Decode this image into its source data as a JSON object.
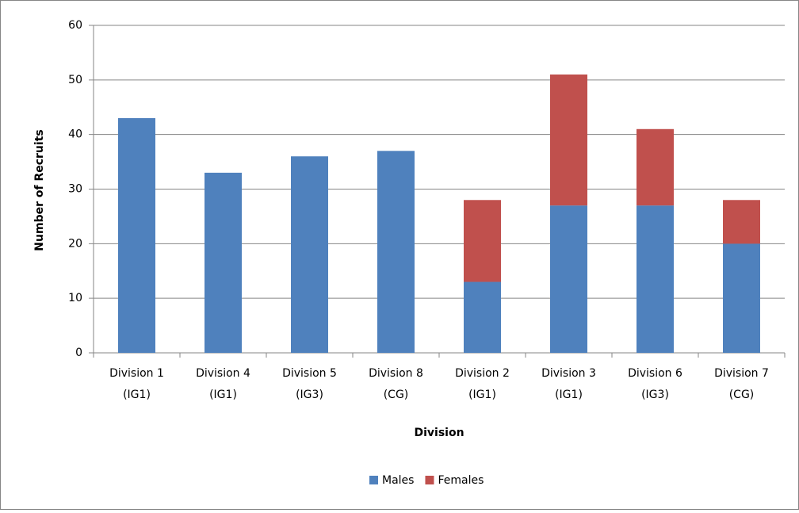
{
  "chart_data": {
    "type": "stacked_bar",
    "x_label": "Division",
    "y_label": "Number of Recruits",
    "categories": [
      [
        "Division 1",
        "(IG1)"
      ],
      [
        "Division 4",
        "(IG1)"
      ],
      [
        "Division 5",
        "(IG3)"
      ],
      [
        "Division 8",
        "(CG)"
      ],
      [
        "Division 2",
        "(IG1)"
      ],
      [
        "Division 3",
        "(IG1)"
      ],
      [
        "Division 6",
        "(IG3)"
      ],
      [
        "Division 7",
        "(CG)"
      ]
    ],
    "series": [
      {
        "name": "Males",
        "color": "#4f81bd",
        "values": [
          43,
          33,
          36,
          37,
          13,
          27,
          27,
          20
        ]
      },
      {
        "name": "Females",
        "color": "#c0504d",
        "values": [
          null,
          null,
          null,
          null,
          15,
          24,
          14,
          8
        ]
      }
    ],
    "ylim": [
      0,
      60
    ],
    "yticks": [
      0,
      10,
      20,
      30,
      40,
      50,
      60
    ],
    "grid": true,
    "legend": "bottom"
  }
}
